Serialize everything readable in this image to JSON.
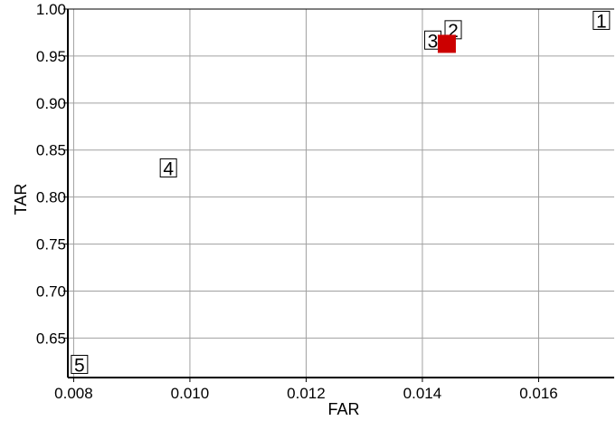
{
  "chart_data": {
    "type": "scatter",
    "xlabel": "FAR",
    "ylabel": "TAR",
    "xlim": [
      0.0079,
      0.0173
    ],
    "ylim": [
      0.608,
      1.0
    ],
    "x_ticks": [
      0.008,
      0.01,
      0.012,
      0.014,
      0.016
    ],
    "x_tick_labels": [
      "0.008",
      "0.010",
      "0.012",
      "0.014",
      "0.016"
    ],
    "y_ticks": [
      0.65,
      0.7,
      0.75,
      0.8,
      0.85,
      0.9,
      0.95,
      1.0
    ],
    "y_tick_labels": [
      "0.65",
      "0.70",
      "0.75",
      "0.80",
      "0.85",
      "0.90",
      "0.95",
      "1.00"
    ],
    "grid": true,
    "points": [
      {
        "label": "1",
        "x": 0.01708,
        "y": 0.988
      },
      {
        "label": "2",
        "x": 0.01453,
        "y": 0.978
      },
      {
        "label": "3",
        "x": 0.01418,
        "y": 0.967
      },
      {
        "label": "4",
        "x": 0.00963,
        "y": 0.831
      },
      {
        "label": "5",
        "x": 0.0081,
        "y": 0.622
      }
    ],
    "highlight": {
      "x": 0.01442,
      "y": 0.963,
      "color": "#cc0000"
    },
    "colors": {
      "grid": "#a0a0a0",
      "axis": "#000000",
      "highlight": "#cc0000"
    }
  }
}
